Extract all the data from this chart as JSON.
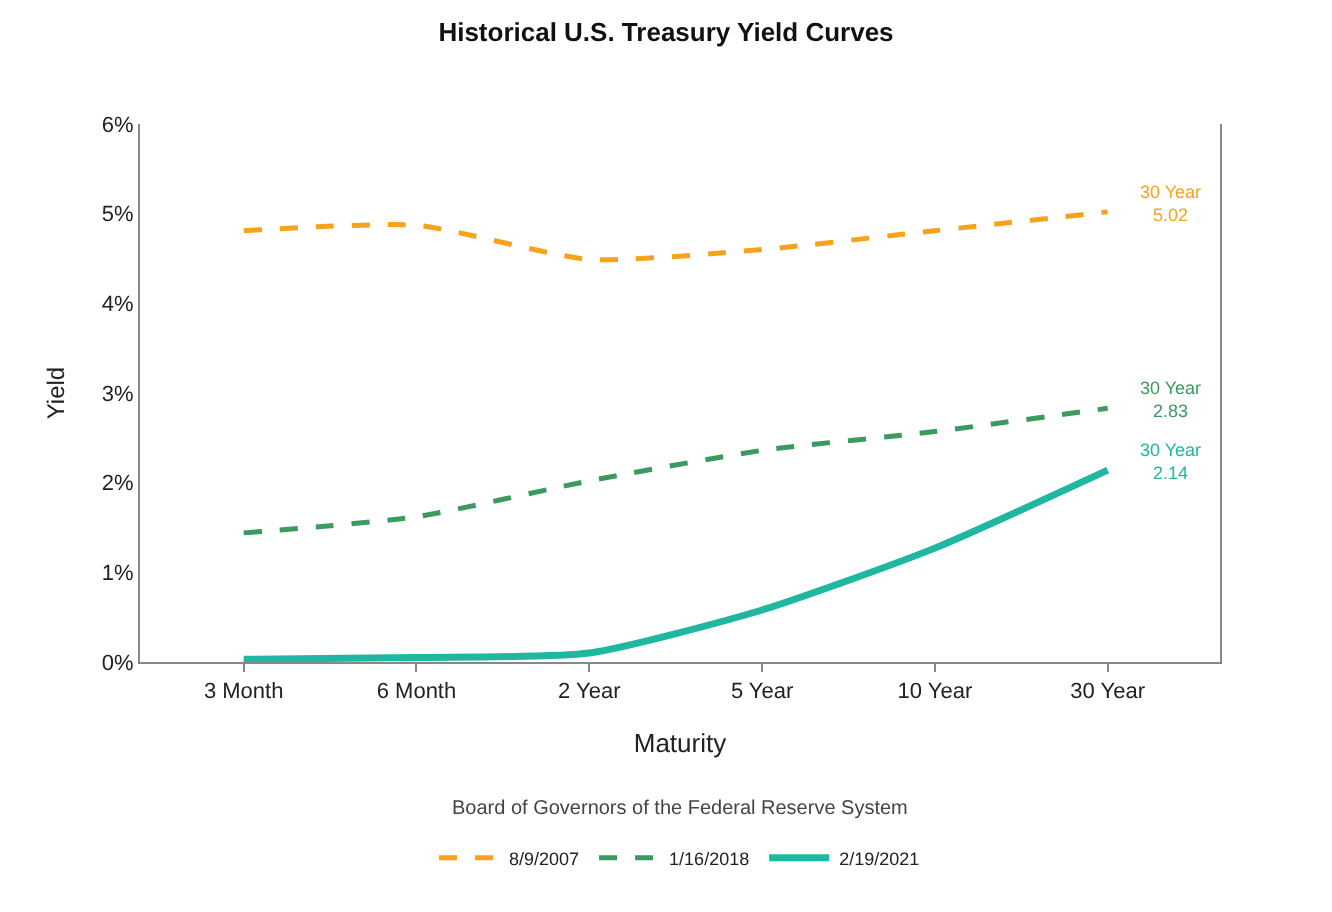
{
  "chart_data": {
    "type": "line",
    "title": "Historical U.S. Treasury Yield Curves",
    "xlabel": "Maturity",
    "ylabel": "Yield",
    "categories": [
      "3 Month",
      "6 Month",
      "2 Year",
      "5 Year",
      "10 Year",
      "30 Year"
    ],
    "series": [
      {
        "name": "8/9/2007",
        "color": "#f7a21b",
        "line_style": "dashed",
        "values": [
          4.81,
          4.87,
          4.49,
          4.6,
          4.81,
          5.02
        ]
      },
      {
        "name": "1/16/2018",
        "color": "#3a9a5f",
        "line_style": "dashed",
        "values": [
          1.44,
          1.62,
          2.02,
          2.36,
          2.57,
          2.83
        ]
      },
      {
        "name": "2/19/2021",
        "color": "#20b7a0",
        "line_style": "solid",
        "values": [
          0.03,
          0.05,
          0.1,
          0.58,
          1.27,
          2.14
        ]
      }
    ],
    "ylim": [
      0,
      6
    ],
    "yticks": [
      {
        "value": 0,
        "label": "0%"
      },
      {
        "value": 1,
        "label": "1%"
      },
      {
        "value": 2,
        "label": "2%"
      },
      {
        "value": 3,
        "label": "3%"
      },
      {
        "value": 4,
        "label": "4%"
      },
      {
        "value": 5,
        "label": "5%"
      },
      {
        "value": 6,
        "label": "6%"
      }
    ],
    "annotations": [
      {
        "text": "30 Year\n5.02",
        "x": "30 Year",
        "y": 5.02
      },
      {
        "text": "30 Year\n2.83",
        "x": "30 Year",
        "y": 2.83
      },
      {
        "text": "30 Year\n2.14",
        "x": "30 Year",
        "y": 2.14
      },
      "Board of Governors of the Federal Reserve System"
    ],
    "legend": "bottom",
    "marker": "none"
  }
}
